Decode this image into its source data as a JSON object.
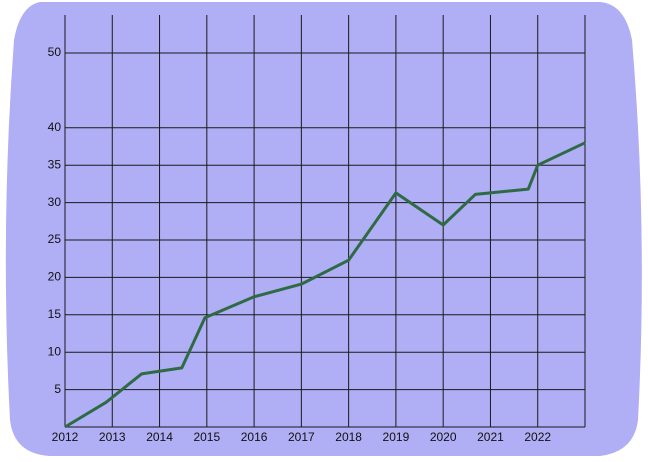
{
  "chart_data": {
    "type": "line",
    "x": [
      2012,
      2012.87,
      2013.62,
      2014.47,
      2014.96,
      2016,
      2017,
      2018,
      2019,
      2020,
      2020.68,
      2021.8,
      2022,
      2023
    ],
    "series": [
      {
        "color": "#2e6b45",
        "values": [
          0,
          3.3,
          7.1,
          7.9,
          14.6,
          17.4,
          19.1,
          22.3,
          31.3,
          27,
          31.1,
          31.8,
          35,
          38
        ]
      }
    ],
    "xlim": [
      2012,
      2023
    ],
    "xticks": [
      2012,
      2013,
      2014,
      2015,
      2016,
      2017,
      2018,
      2019,
      2020,
      2021,
      2022
    ],
    "ylim": [
      0,
      50
    ],
    "yticks": [
      5,
      10,
      15,
      20,
      25,
      30,
      35,
      40,
      50
    ],
    "grid": true
  }
}
